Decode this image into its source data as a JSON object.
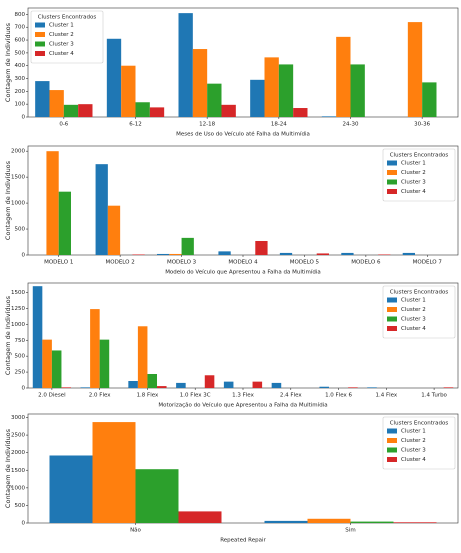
{
  "chart_data": [
    {
      "type": "bar",
      "y_label": "Contagem de Indivíduos",
      "x_label": "Meses de Uso do Veículo até Falha da Multimídia",
      "categories": [
        "0-6",
        "6-12",
        "12-18",
        "18-24",
        "24-30",
        "30-36"
      ],
      "series": [
        {
          "name": "Cluster 1",
          "color": "#1f77b4",
          "values": [
            280,
            610,
            810,
            290,
            5,
            0
          ]
        },
        {
          "name": "Cluster 2",
          "color": "#ff7f0e",
          "values": [
            210,
            400,
            530,
            465,
            625,
            740
          ]
        },
        {
          "name": "Cluster 3",
          "color": "#2ca02c",
          "values": [
            95,
            115,
            260,
            410,
            410,
            270
          ]
        },
        {
          "name": "Cluster 4",
          "color": "#d62728",
          "values": [
            100,
            75,
            95,
            70,
            0,
            0
          ]
        }
      ],
      "ylim": [
        0,
        850
      ],
      "yticks": [
        0,
        100,
        200,
        300,
        400,
        500,
        600,
        700,
        800
      ],
      "legend_title": "Clusters Encontrados",
      "legend": "upper left"
    },
    {
      "type": "bar",
      "y_label": "Contagem de Indivíduos",
      "x_label": "Modelo do Veículo que Apresentou a Falha da Multimídia",
      "categories": [
        "MODELO 1",
        "MODELO 2",
        "MODELO 3",
        "MODELO 4",
        "MODELO 5",
        "MODELO 6",
        "MODELO 7"
      ],
      "series": [
        {
          "name": "Cluster 1",
          "color": "#1f77b4",
          "values": [
            0,
            1750,
            20,
            70,
            40,
            40,
            40
          ]
        },
        {
          "name": "Cluster 2",
          "color": "#ff7f0e",
          "values": [
            2000,
            950,
            20,
            0,
            0,
            0,
            0
          ]
        },
        {
          "name": "Cluster 3",
          "color": "#2ca02c",
          "values": [
            1220,
            0,
            330,
            0,
            0,
            0,
            0
          ]
        },
        {
          "name": "Cluster 4",
          "color": "#d62728",
          "values": [
            0,
            10,
            0,
            270,
            30,
            10,
            0
          ]
        }
      ],
      "ylim": [
        0,
        2100
      ],
      "yticks": [
        0,
        500,
        1000,
        1500,
        2000
      ],
      "legend_title": "Clusters Encontrados",
      "legend": "upper right"
    },
    {
      "type": "bar",
      "y_label": "Contagem de Indivíduos",
      "x_label": "Motorização do Veículo que Apresentou a Falha da Multimídia",
      "categories": [
        "2.0 Diesel",
        "2.0 Flex",
        "1.8 Flex",
        "1.0 Flex 3C",
        "1.3 Flex",
        "2.4 Flex",
        "1.0 Flex 6",
        "1.4 Flex",
        "1.4 Turbo"
      ],
      "series": [
        {
          "name": "Cluster 1",
          "color": "#1f77b4",
          "values": [
            1600,
            10,
            110,
            80,
            100,
            80,
            20,
            10,
            0
          ]
        },
        {
          "name": "Cluster 2",
          "color": "#ff7f0e",
          "values": [
            760,
            1240,
            970,
            0,
            0,
            0,
            0,
            0,
            0
          ]
        },
        {
          "name": "Cluster 3",
          "color": "#2ca02c",
          "values": [
            590,
            760,
            220,
            0,
            0,
            0,
            0,
            0,
            0
          ]
        },
        {
          "name": "Cluster 4",
          "color": "#d62728",
          "values": [
            10,
            0,
            30,
            200,
            100,
            0,
            10,
            0,
            10
          ]
        }
      ],
      "ylim": [
        0,
        1650
      ],
      "yticks": [
        0,
        250,
        500,
        750,
        1000,
        1250,
        1500
      ],
      "legend_title": "Clusters Encontrados",
      "legend": "upper right"
    },
    {
      "type": "bar",
      "y_label": "Contagem de Indivíduos",
      "x_label": "Repeated Repair",
      "categories": [
        "Não",
        "Sim"
      ],
      "series": [
        {
          "name": "Cluster 1",
          "color": "#1f77b4",
          "values": [
            1920,
            60
          ]
        },
        {
          "name": "Cluster 2",
          "color": "#ff7f0e",
          "values": [
            2870,
            120
          ]
        },
        {
          "name": "Cluster 3",
          "color": "#2ca02c",
          "values": [
            1530,
            40
          ]
        },
        {
          "name": "Cluster 4",
          "color": "#d62728",
          "values": [
            330,
            20
          ]
        }
      ],
      "ylim": [
        0,
        3100
      ],
      "yticks": [
        0,
        500,
        1000,
        1500,
        2000,
        2500,
        3000
      ],
      "legend_title": "Clusters Encontrados",
      "legend": "upper right"
    }
  ]
}
